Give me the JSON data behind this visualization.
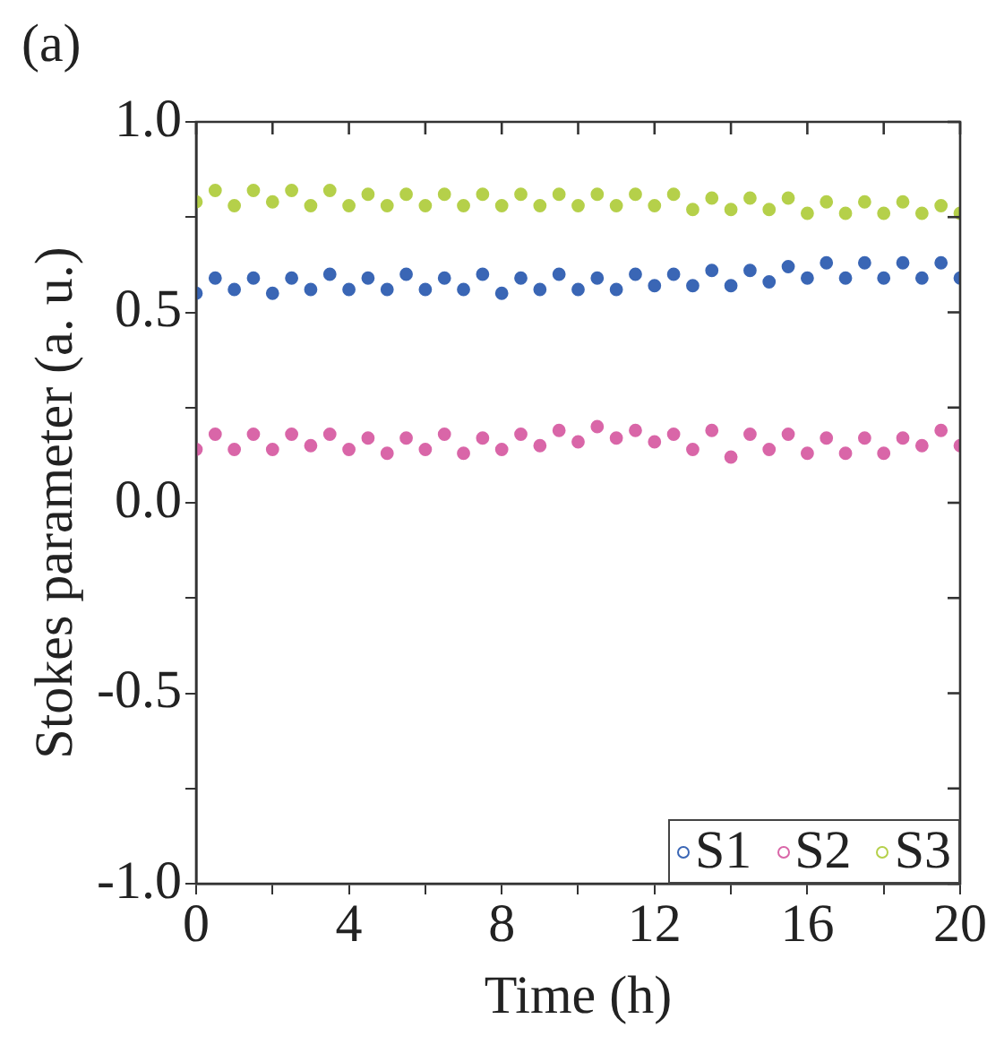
{
  "chart_data": {
    "type": "scatter",
    "title": "(a)",
    "xlabel": "Time (h)",
    "ylabel": "Stokes parameter (a. u.)",
    "x": [
      0,
      0.5,
      1,
      1.5,
      2,
      2.5,
      3,
      3.5,
      4,
      4.5,
      5,
      5.5,
      6,
      6.5,
      7,
      7.5,
      8,
      8.5,
      9,
      9.5,
      10,
      10.5,
      11,
      11.5,
      12,
      12.5,
      13,
      13.5,
      14,
      14.5,
      15,
      15.5,
      16,
      16.5,
      17,
      17.5,
      18,
      18.5,
      19,
      19.5,
      20
    ],
    "series": [
      {
        "name": "S1",
        "color": "#3a66b5",
        "values": [
          0.55,
          0.59,
          0.56,
          0.59,
          0.55,
          0.59,
          0.56,
          0.6,
          0.56,
          0.59,
          0.56,
          0.6,
          0.56,
          0.59,
          0.56,
          0.6,
          0.55,
          0.59,
          0.56,
          0.6,
          0.56,
          0.59,
          0.56,
          0.6,
          0.57,
          0.6,
          0.57,
          0.61,
          0.57,
          0.61,
          0.58,
          0.62,
          0.59,
          0.63,
          0.59,
          0.63,
          0.59,
          0.63,
          0.59,
          0.63,
          0.59
        ]
      },
      {
        "name": "S2",
        "color": "#d966a8",
        "values": [
          0.14,
          0.18,
          0.14,
          0.18,
          0.14,
          0.18,
          0.15,
          0.18,
          0.14,
          0.17,
          0.13,
          0.17,
          0.14,
          0.18,
          0.13,
          0.17,
          0.14,
          0.18,
          0.15,
          0.19,
          0.16,
          0.2,
          0.17,
          0.19,
          0.16,
          0.18,
          0.14,
          0.19,
          0.12,
          0.18,
          0.14,
          0.18,
          0.13,
          0.17,
          0.13,
          0.17,
          0.13,
          0.17,
          0.15,
          0.19,
          0.15
        ]
      },
      {
        "name": "S3",
        "color": "#b5d04a",
        "values": [
          0.79,
          0.82,
          0.78,
          0.82,
          0.79,
          0.82,
          0.78,
          0.82,
          0.78,
          0.81,
          0.78,
          0.81,
          0.78,
          0.81,
          0.78,
          0.81,
          0.78,
          0.81,
          0.78,
          0.81,
          0.78,
          0.81,
          0.78,
          0.81,
          0.78,
          0.81,
          0.77,
          0.8,
          0.77,
          0.8,
          0.77,
          0.8,
          0.76,
          0.79,
          0.76,
          0.79,
          0.76,
          0.79,
          0.76,
          0.78,
          0.76
        ]
      }
    ],
    "xlim": [
      0,
      20
    ],
    "xticks": [
      0,
      {
        "value": 2,
        "label": null
      },
      4,
      {
        "value": 6,
        "label": null
      },
      8,
      {
        "value": 10,
        "label": null
      },
      12,
      {
        "value": 14,
        "label": null
      },
      16,
      {
        "value": 18,
        "label": null
      },
      20
    ],
    "ylim": [
      -1,
      1
    ],
    "yticks": [
      {
        "value": -1,
        "label": "-1.0"
      },
      {
        "value": -0.75,
        "label": null
      },
      {
        "value": -0.5,
        "label": "-0.5"
      },
      {
        "value": -0.25,
        "label": null
      },
      {
        "value": 0,
        "label": "0.0"
      },
      {
        "value": 0.25,
        "label": null
      },
      {
        "value": 0.5,
        "label": "0.5"
      },
      {
        "value": 0.75,
        "label": null
      },
      {
        "value": 1,
        "label": "1.0"
      }
    ],
    "grid": false,
    "legend": "bottom right",
    "marker": "circle"
  }
}
